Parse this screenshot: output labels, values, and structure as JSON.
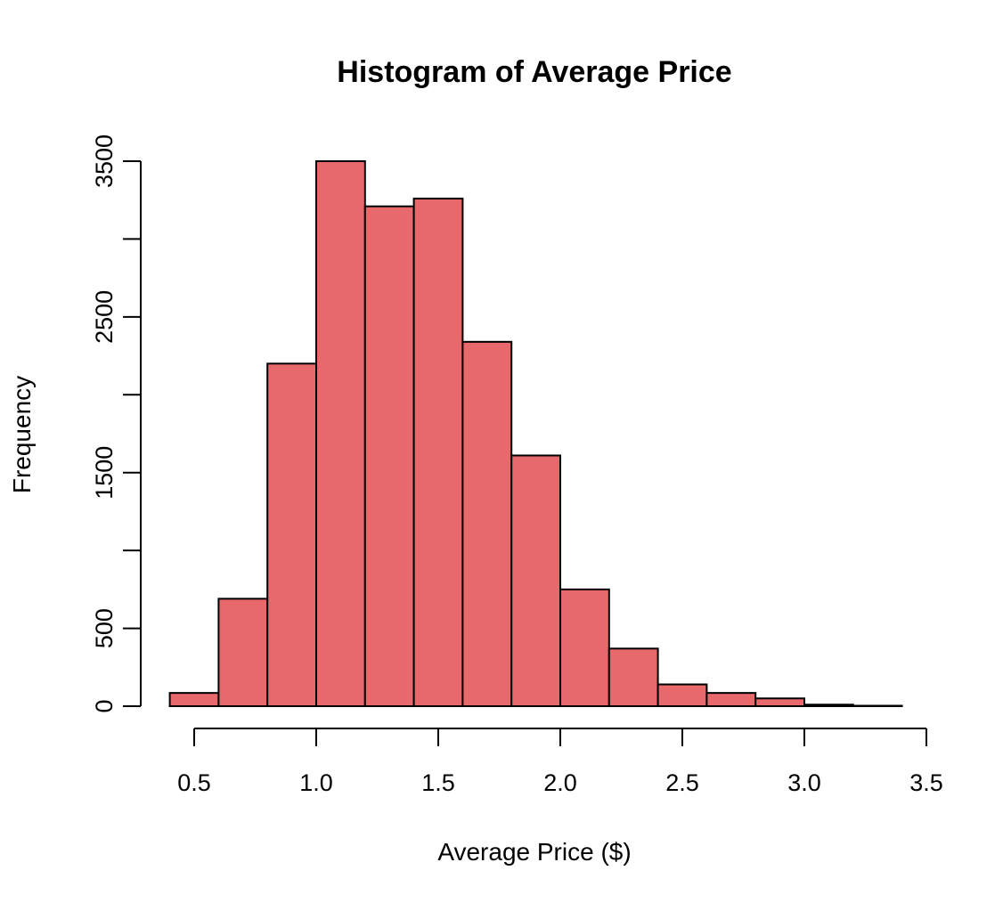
{
  "chart_data": {
    "type": "bar",
    "title": "Histogram of Average Price",
    "xlabel": "Average Price ($)",
    "ylabel": "Frequency",
    "bar_color": "#E8696B",
    "edge_color": "#000000",
    "x_ticks": [
      0.5,
      1.0,
      1.5,
      2.0,
      2.5,
      3.0,
      3.5
    ],
    "x_tick_labels": [
      "0.5",
      "1.0",
      "1.5",
      "2.0",
      "2.5",
      "3.0",
      "3.5"
    ],
    "y_ticks": [
      0,
      500,
      1000,
      1500,
      2000,
      2500,
      3000,
      3500
    ],
    "y_tick_labels": [
      "0",
      "500",
      "",
      "1500",
      "",
      "2500",
      "",
      "3500"
    ],
    "xlim": [
      0.5,
      3.5
    ],
    "ylim": [
      0,
      3500
    ],
    "grid": false,
    "bins": [
      {
        "start": 0.4,
        "end": 0.6,
        "count": 85
      },
      {
        "start": 0.6,
        "end": 0.8,
        "count": 690
      },
      {
        "start": 0.8,
        "end": 1.0,
        "count": 2200
      },
      {
        "start": 1.0,
        "end": 1.2,
        "count": 3500
      },
      {
        "start": 1.2,
        "end": 1.4,
        "count": 3210
      },
      {
        "start": 1.4,
        "end": 1.6,
        "count": 3260
      },
      {
        "start": 1.6,
        "end": 1.8,
        "count": 2340
      },
      {
        "start": 1.8,
        "end": 2.0,
        "count": 1610
      },
      {
        "start": 2.0,
        "end": 2.2,
        "count": 750
      },
      {
        "start": 2.2,
        "end": 2.4,
        "count": 370
      },
      {
        "start": 2.4,
        "end": 2.6,
        "count": 140
      },
      {
        "start": 2.6,
        "end": 2.8,
        "count": 85
      },
      {
        "start": 2.8,
        "end": 3.0,
        "count": 50
      },
      {
        "start": 3.0,
        "end": 3.2,
        "count": 10
      },
      {
        "start": 3.2,
        "end": 3.4,
        "count": 3
      }
    ]
  }
}
